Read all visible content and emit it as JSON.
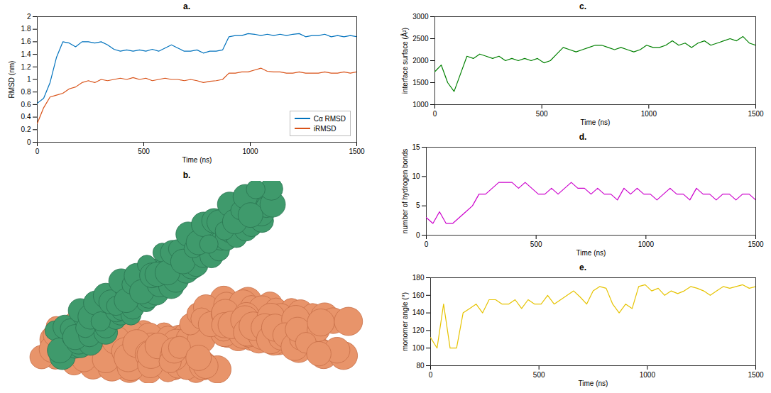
{
  "chart_data": [
    {
      "type": "line",
      "title": "a.",
      "x": [
        0,
        30,
        60,
        90,
        120,
        150,
        180,
        210,
        240,
        270,
        300,
        330,
        360,
        390,
        420,
        450,
        480,
        510,
        540,
        570,
        600,
        630,
        660,
        690,
        720,
        750,
        780,
        810,
        840,
        870,
        900,
        930,
        960,
        990,
        1020,
        1050,
        1080,
        1110,
        1140,
        1170,
        1200,
        1230,
        1260,
        1290,
        1320,
        1350,
        1380,
        1410,
        1440,
        1470,
        1500
      ],
      "xlim": [
        0,
        1500
      ],
      "xticks": [
        0,
        500,
        1000,
        1500
      ],
      "ylim": [
        0,
        2
      ],
      "yticks": [
        0,
        0.2,
        0.4,
        0.6,
        0.8,
        1,
        1.2,
        1.4,
        1.6,
        1.8,
        2
      ],
      "xlabel": "Time (ns)",
      "ylabel": "RMSD (nm)",
      "legend": "lower right",
      "series": [
        {
          "name": "Cα RMSD",
          "color": "#0072bd",
          "values": [
            0.62,
            0.7,
            0.95,
            1.35,
            1.6,
            1.58,
            1.52,
            1.6,
            1.6,
            1.58,
            1.6,
            1.55,
            1.48,
            1.45,
            1.47,
            1.45,
            1.47,
            1.45,
            1.48,
            1.45,
            1.5,
            1.55,
            1.5,
            1.45,
            1.45,
            1.47,
            1.42,
            1.45,
            1.45,
            1.47,
            1.68,
            1.7,
            1.7,
            1.73,
            1.72,
            1.7,
            1.72,
            1.7,
            1.72,
            1.7,
            1.72,
            1.73,
            1.68,
            1.7,
            1.7,
            1.72,
            1.68,
            1.7,
            1.68,
            1.7,
            1.68
          ]
        },
        {
          "name": "iRMSD",
          "color": "#d95319",
          "values": [
            0.3,
            0.55,
            0.72,
            0.75,
            0.78,
            0.85,
            0.88,
            0.95,
            0.98,
            0.95,
            1.0,
            0.98,
            1.0,
            1.02,
            1.0,
            1.03,
            1.0,
            1.02,
            0.98,
            1.0,
            1.02,
            1.0,
            1.0,
            0.98,
            1.0,
            0.98,
            0.95,
            0.97,
            0.98,
            1.0,
            1.1,
            1.1,
            1.12,
            1.12,
            1.15,
            1.18,
            1.13,
            1.12,
            1.12,
            1.1,
            1.1,
            1.12,
            1.1,
            1.1,
            1.1,
            1.12,
            1.1,
            1.1,
            1.12,
            1.1,
            1.12
          ]
        }
      ]
    },
    {
      "type": "image",
      "title": "b."
    },
    {
      "type": "line",
      "title": "c.",
      "x": [
        0,
        30,
        60,
        90,
        120,
        150,
        180,
        210,
        240,
        270,
        300,
        330,
        360,
        390,
        420,
        450,
        480,
        510,
        540,
        570,
        600,
        630,
        660,
        690,
        720,
        750,
        780,
        810,
        840,
        870,
        900,
        930,
        960,
        990,
        1020,
        1050,
        1080,
        1110,
        1140,
        1170,
        1200,
        1230,
        1260,
        1290,
        1320,
        1350,
        1380,
        1410,
        1440,
        1470,
        1500
      ],
      "xlim": [
        0,
        1500
      ],
      "xticks": [
        0,
        500,
        1000,
        1500
      ],
      "ylim": [
        1000,
        3000
      ],
      "yticks": [
        1000,
        1500,
        2000,
        2500,
        3000
      ],
      "xlabel": "Time (ns)",
      "ylabel": "interface surface (Å²)",
      "series": [
        {
          "name": "interface surface",
          "color": "#008000",
          "values": [
            1750,
            1900,
            1500,
            1300,
            1700,
            2100,
            2050,
            2150,
            2100,
            2050,
            2100,
            2000,
            2050,
            2000,
            2050,
            2000,
            2050,
            1950,
            2000,
            2150,
            2300,
            2250,
            2200,
            2250,
            2300,
            2350,
            2350,
            2300,
            2250,
            2300,
            2250,
            2200,
            2250,
            2350,
            2300,
            2300,
            2350,
            2450,
            2350,
            2400,
            2300,
            2400,
            2450,
            2350,
            2400,
            2450,
            2500,
            2450,
            2550,
            2400,
            2350
          ]
        }
      ]
    },
    {
      "type": "line",
      "title": "d.",
      "x": [
        0,
        30,
        60,
        90,
        120,
        150,
        180,
        210,
        240,
        270,
        300,
        330,
        360,
        390,
        420,
        450,
        480,
        510,
        540,
        570,
        600,
        630,
        660,
        690,
        720,
        750,
        780,
        810,
        840,
        870,
        900,
        930,
        960,
        990,
        1020,
        1050,
        1080,
        1110,
        1140,
        1170,
        1200,
        1230,
        1260,
        1290,
        1320,
        1350,
        1380,
        1410,
        1440,
        1470,
        1500
      ],
      "xlim": [
        0,
        1500
      ],
      "xticks": [
        0,
        500,
        1000,
        1500
      ],
      "ylim": [
        0,
        15
      ],
      "yticks": [
        0,
        5,
        10,
        15
      ],
      "xlabel": "Time (ns)",
      "ylabel": "number of hydrogen bonds",
      "series": [
        {
          "name": "hydrogen bonds",
          "color": "#cc00cc",
          "values": [
            3,
            2,
            4,
            2,
            2,
            3,
            4,
            5,
            7,
            7,
            8,
            9,
            9,
            9,
            8,
            9,
            8,
            7,
            7,
            8,
            7,
            8,
            9,
            8,
            8,
            7,
            8,
            7,
            7,
            6,
            8,
            7,
            8,
            7,
            7,
            6,
            7,
            8,
            7,
            7,
            6,
            8,
            7,
            7,
            6,
            7,
            7,
            6,
            7,
            7,
            6
          ]
        }
      ]
    },
    {
      "type": "line",
      "title": "e.",
      "x": [
        0,
        30,
        60,
        90,
        120,
        150,
        180,
        210,
        240,
        270,
        300,
        330,
        360,
        390,
        420,
        450,
        480,
        510,
        540,
        570,
        600,
        630,
        660,
        690,
        720,
        750,
        780,
        810,
        840,
        870,
        900,
        930,
        960,
        990,
        1020,
        1050,
        1080,
        1110,
        1140,
        1170,
        1200,
        1230,
        1260,
        1290,
        1320,
        1350,
        1380,
        1410,
        1440,
        1470,
        1500
      ],
      "xlim": [
        0,
        1500
      ],
      "xticks": [
        0,
        500,
        1000,
        1500
      ],
      "ylim": [
        80,
        180
      ],
      "yticks": [
        80,
        100,
        120,
        140,
        160,
        180
      ],
      "xlabel": "Time (ns)",
      "ylabel": "monomer angle (°)",
      "series": [
        {
          "name": "monomer angle",
          "color": "#e6c300",
          "values": [
            112,
            100,
            150,
            100,
            100,
            140,
            145,
            150,
            140,
            155,
            155,
            150,
            150,
            155,
            145,
            155,
            150,
            150,
            160,
            150,
            155,
            160,
            165,
            158,
            150,
            165,
            170,
            168,
            150,
            140,
            150,
            145,
            170,
            172,
            165,
            168,
            160,
            165,
            162,
            165,
            170,
            168,
            165,
            160,
            165,
            170,
            168,
            170,
            172,
            168,
            170
          ]
        }
      ]
    }
  ]
}
